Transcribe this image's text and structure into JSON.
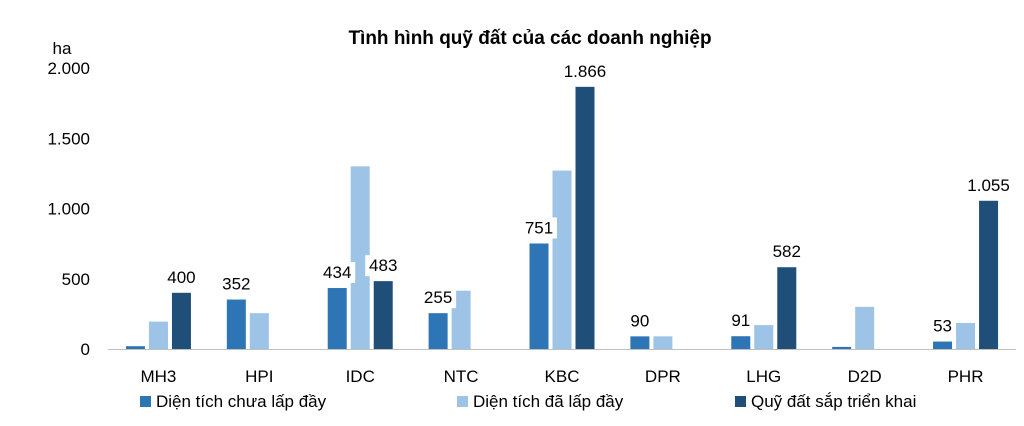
{
  "chart_data": {
    "type": "bar",
    "title": "Tình hình quỹ đất của các doanh nghiệp",
    "ylabel": "ha",
    "xlabel": "",
    "ylim": [
      0,
      2000
    ],
    "yticks": [
      0,
      500,
      1000,
      1500,
      2000
    ],
    "ytick_labels": [
      "0",
      "500",
      "1.000",
      "1.500",
      "2.000"
    ],
    "categories": [
      "MH3",
      "HPI",
      "IDC",
      "NTC",
      "KBC",
      "DPR",
      "LHG",
      "D2D",
      "PHR"
    ],
    "series": [
      {
        "name": "Diện tích chưa lấp đầy",
        "color": "#2e75b6",
        "values": [
          20,
          352,
          434,
          255,
          751,
          90,
          91,
          15,
          53
        ],
        "labels": [
          "",
          "352",
          "434",
          "255",
          "751",
          "90",
          "91",
          "",
          "53"
        ]
      },
      {
        "name": "Diện tích đã lấp đầy",
        "color": "#9dc3e6",
        "values": [
          195,
          255,
          1300,
          415,
          1270,
          90,
          170,
          300,
          185
        ],
        "labels": [
          "",
          "",
          "",
          "",
          "",
          "",
          "",
          "",
          ""
        ]
      },
      {
        "name": "Quỹ đất sắp triển khai",
        "color": "#1f4e79",
        "values": [
          400,
          0,
          483,
          0,
          1866,
          0,
          582,
          0,
          1055
        ],
        "labels": [
          "400",
          "",
          "483",
          "",
          "1.866",
          "",
          "582",
          "",
          "1.055"
        ]
      }
    ],
    "grid": false,
    "legend_position": "bottom"
  }
}
